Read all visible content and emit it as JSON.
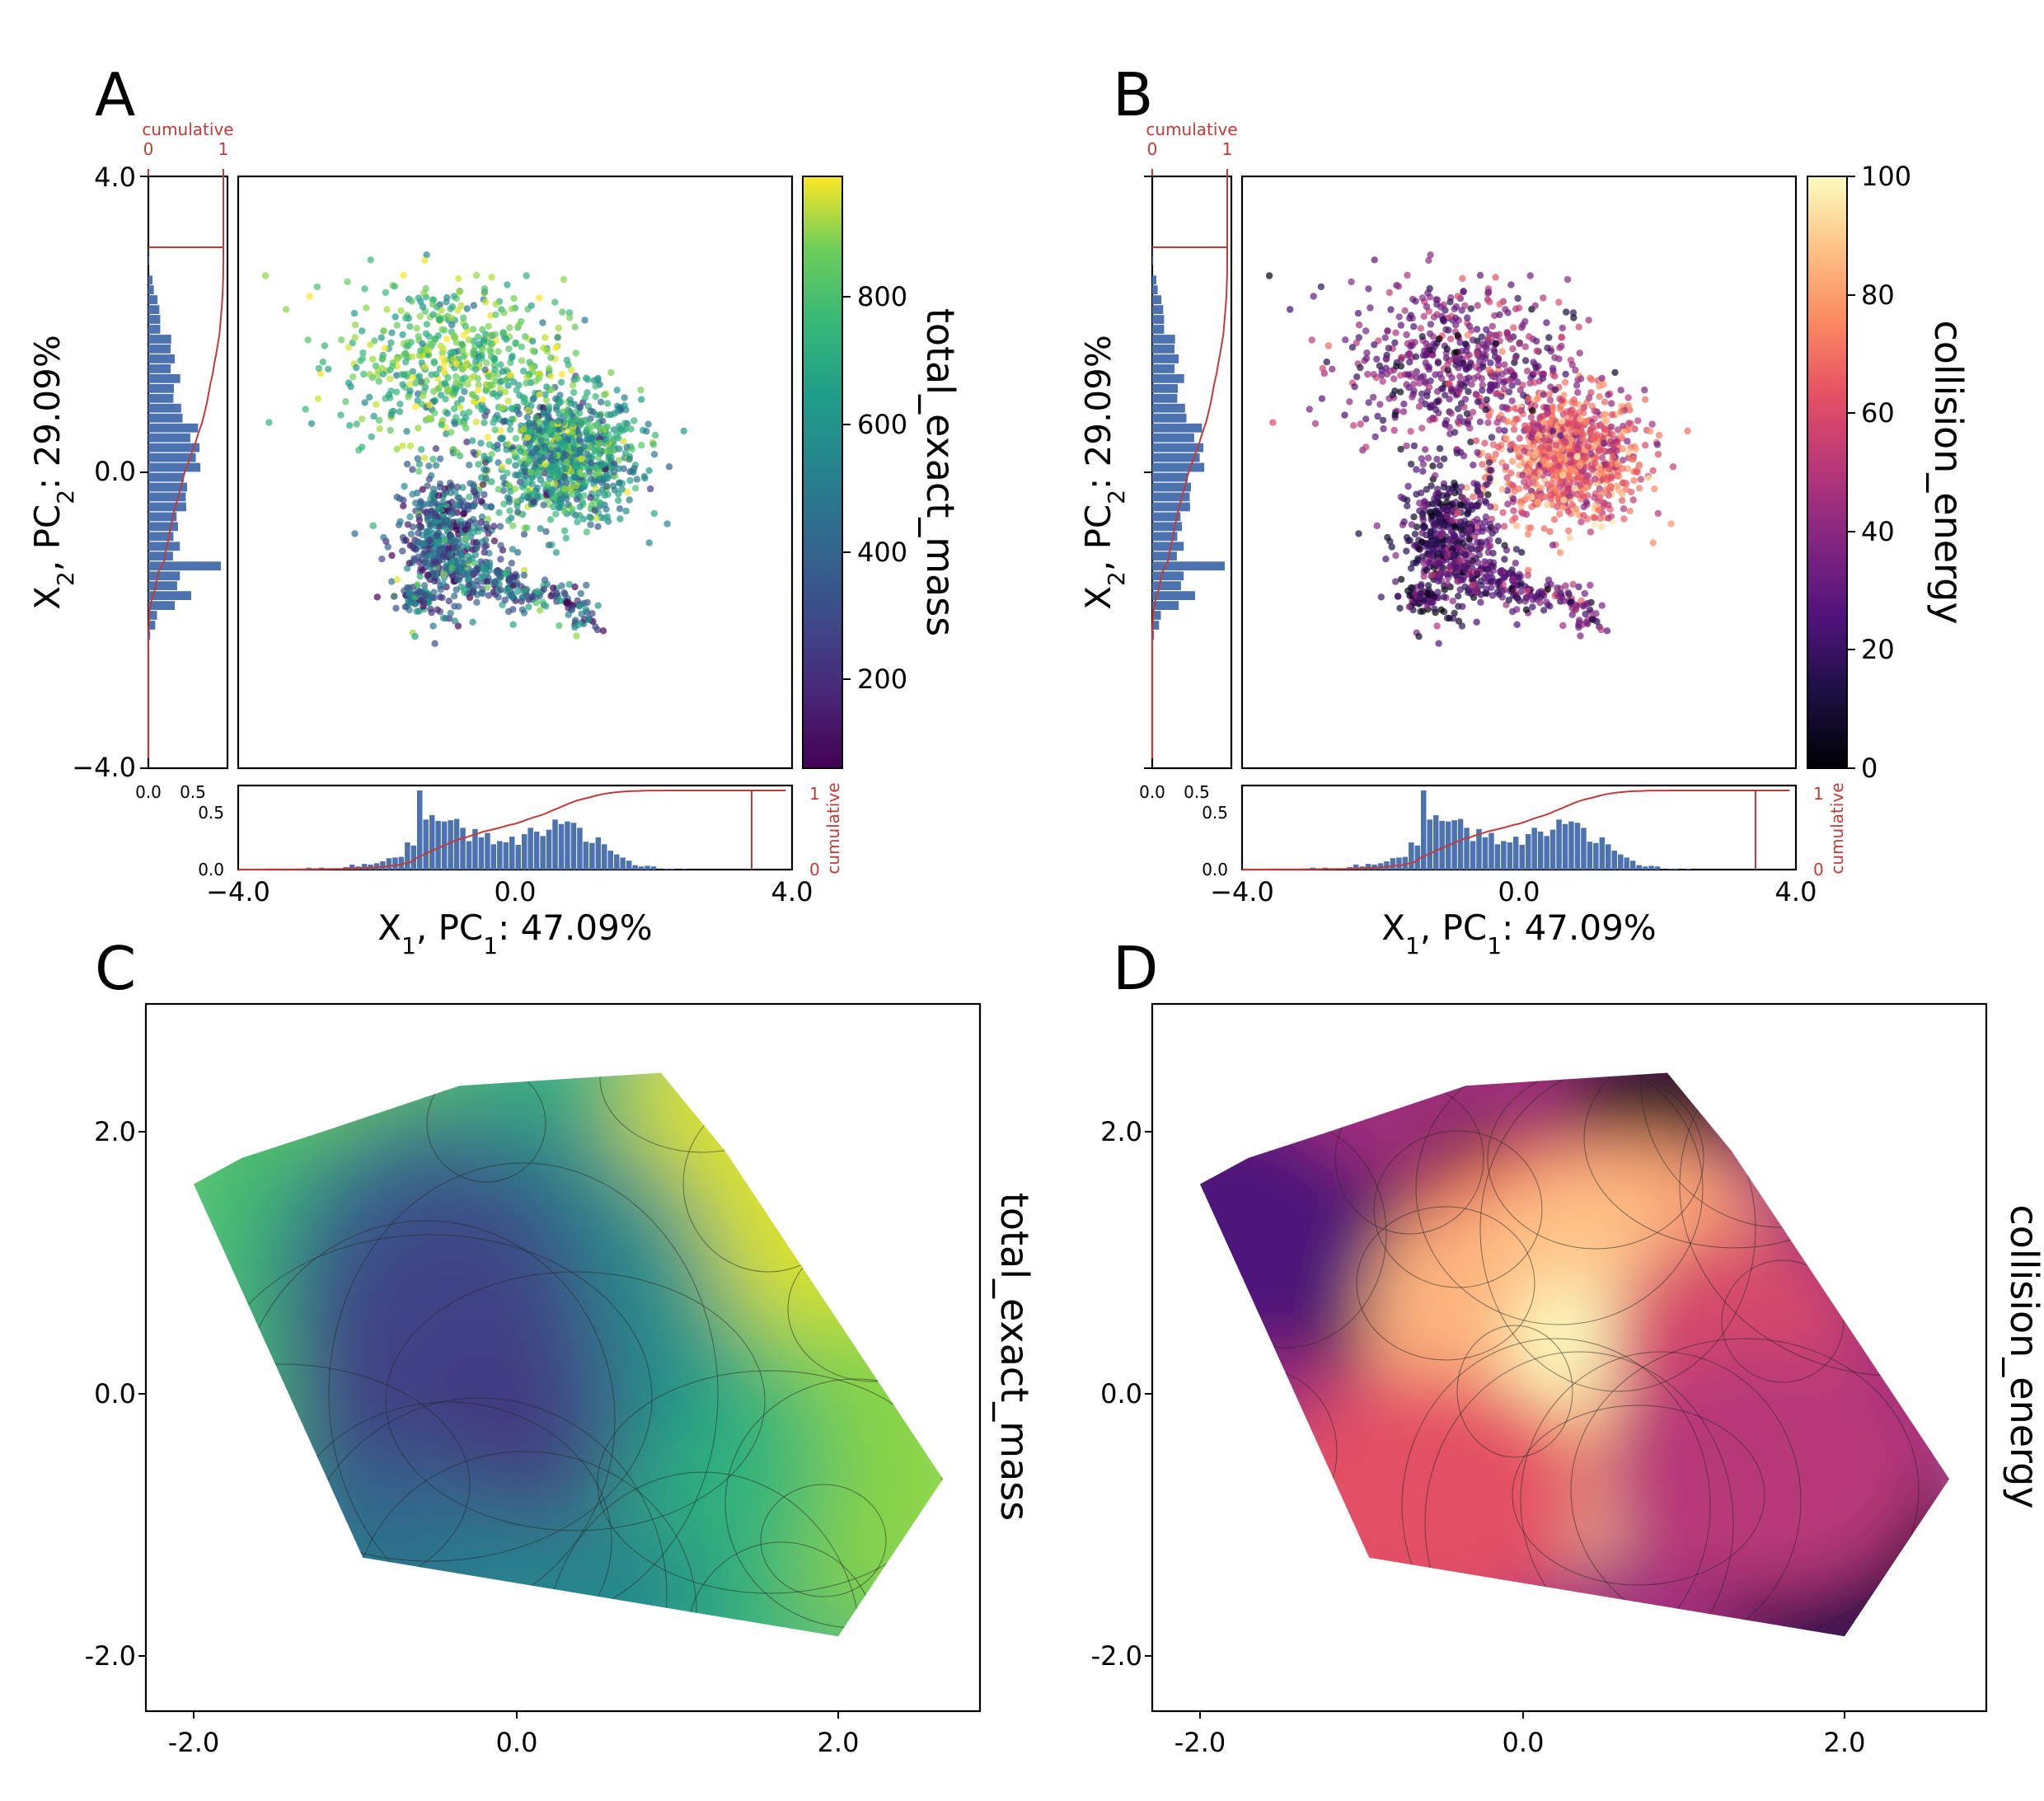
{
  "panels": {
    "A": {
      "letter": "A",
      "colorbar_label": "total_exact_mass",
      "colorbar_ticks": [
        "200",
        "400",
        "600",
        "800"
      ]
    },
    "B": {
      "letter": "B",
      "colorbar_label": "collision_energy",
      "colorbar_ticks": [
        "0",
        "20",
        "40",
        "60",
        "80",
        "100"
      ]
    },
    "C": {
      "letter": "C",
      "side_label": "total_exact_mass"
    },
    "D": {
      "letter": "D",
      "side_label": "collision_energy"
    }
  },
  "axes": {
    "y_label_html": "X<tspan baseline-shift='sub' font-size='28'>2</tspan>, PC<tspan baseline-shift='sub' font-size='28'>2</tspan>: 29.09%",
    "y_label_parts": [
      "X",
      "2",
      ", ",
      "PC",
      "2",
      ": 29.09%"
    ],
    "x_label_parts": [
      "X",
      "1",
      ", ",
      "PC",
      "1",
      ": 47.09%"
    ],
    "scatter_y_ticks": [
      "4.0",
      "0.0",
      "−4.0"
    ],
    "scatter_x_ticks": [
      "−4.0",
      "0.0",
      "4.0"
    ],
    "hist_ticks": [
      "0.0",
      "0.5"
    ],
    "hist_bottom_y_ticks": [
      "0.5",
      "0.0"
    ],
    "cumulative_label": "cumulative",
    "cumulative_ticks": [
      "0",
      "1"
    ],
    "contour_x_ticks": [
      "-2.0",
      "0.0",
      "2.0"
    ],
    "contour_y_ticks": [
      "2.0",
      "0.0",
      "-2.0"
    ]
  },
  "colors": {
    "hist_bar": "#4c72b0",
    "cumulative_line": "#c23b3b"
  },
  "chart_data": [
    {
      "type": "scatter",
      "panel": "A",
      "xlim": [
        -4,
        4
      ],
      "ylim": [
        -4,
        4
      ],
      "color_by": "total_exact_mass",
      "color_range": [
        60,
        980
      ],
      "colormap": "viridis",
      "clusters": [
        {
          "center": [
            0.7,
            0.2
          ],
          "spread": [
            0.55,
            0.5
          ],
          "value_mean": 600
        },
        {
          "center": [
            -0.9,
            -1.0
          ],
          "spread": [
            0.4,
            0.5
          ],
          "value_mean": 300
        },
        {
          "center": [
            -0.9,
            1.4
          ],
          "spread": [
            0.8,
            0.6
          ],
          "value_mean": 650
        }
      ]
    },
    {
      "type": "scatter",
      "panel": "B",
      "xlim": [
        -4,
        4
      ],
      "ylim": [
        -4,
        4
      ],
      "color_by": "collision_energy",
      "color_range": [
        0,
        100
      ],
      "colormap": "magma",
      "clusters": [
        {
          "center": [
            0.7,
            0.2
          ],
          "spread": [
            0.55,
            0.5
          ],
          "value_mean": 55
        },
        {
          "center": [
            -0.9,
            -1.0
          ],
          "spread": [
            0.4,
            0.5
          ],
          "value_mean": 25
        },
        {
          "center": [
            -0.9,
            1.4
          ],
          "spread": [
            0.8,
            0.6
          ],
          "value_mean": 30
        }
      ]
    },
    {
      "type": "heatmap",
      "panel": "C",
      "xlim": [
        -2.5,
        2.5
      ],
      "ylim": [
        -2.4,
        2.8
      ],
      "variable": "total_exact_mass",
      "colormap": "viridis",
      "hull": [
        [
          -2.0,
          1.6
        ],
        [
          -1.7,
          1.8
        ],
        [
          -1.2,
          2.0
        ],
        [
          -0.35,
          2.35
        ],
        [
          0.9,
          2.45
        ],
        [
          1.3,
          1.85
        ],
        [
          2.65,
          -0.65
        ],
        [
          2.0,
          -1.85
        ],
        [
          -0.95,
          -1.25
        ]
      ]
    },
    {
      "type": "heatmap",
      "panel": "D",
      "xlim": [
        -2.5,
        2.5
      ],
      "ylim": [
        -2.4,
        2.8
      ],
      "variable": "collision_energy",
      "colormap": "magma",
      "hull": [
        [
          -2.0,
          1.6
        ],
        [
          -1.7,
          1.8
        ],
        [
          -1.2,
          2.0
        ],
        [
          -0.35,
          2.35
        ],
        [
          0.9,
          2.45
        ],
        [
          1.3,
          1.85
        ],
        [
          2.65,
          -0.65
        ],
        [
          2.0,
          -1.85
        ],
        [
          -0.95,
          -1.25
        ]
      ]
    }
  ]
}
